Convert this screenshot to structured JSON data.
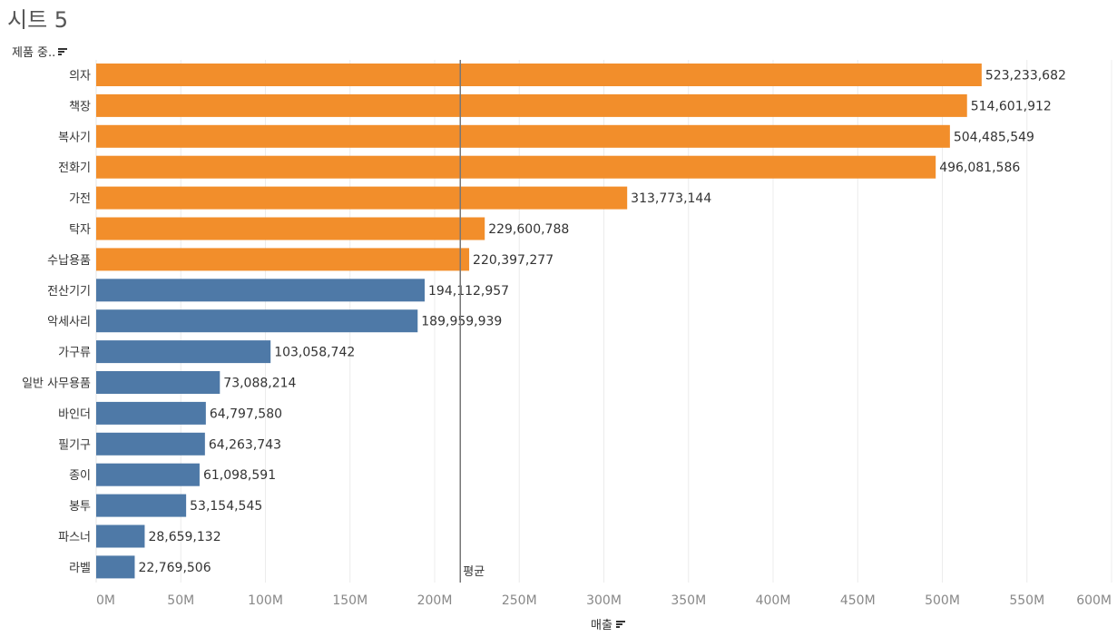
{
  "sheet_title": "시트 5",
  "row_header_label": "제품 중..",
  "x_axis_title": "매출",
  "avg_label": "평균",
  "colors": {
    "highlight": "#F28E2B",
    "base": "#4E79A7",
    "avg_line": "#777777",
    "grid": "#ececec"
  },
  "chart_data": {
    "type": "bar",
    "orientation": "horizontal",
    "categories": [
      "의자",
      "책장",
      "복사기",
      "전화기",
      "가전",
      "탁자",
      "수납용품",
      "전산기기",
      "악세사리",
      "가구류",
      "일반 사무용품",
      "바인더",
      "필기구",
      "종이",
      "봉투",
      "파스너",
      "라벨"
    ],
    "values": [
      523233682,
      514601912,
      504485549,
      496081586,
      313773144,
      229600788,
      220397277,
      194112957,
      189959939,
      103058742,
      73088214,
      64797580,
      64263743,
      61098591,
      53154545,
      28659132,
      22769506
    ],
    "value_labels": [
      "523,233,682",
      "514,601,912",
      "504,485,549",
      "496,081,586",
      "313,773,144",
      "229,600,788",
      "220,397,277",
      "194,112,957",
      "189,959,939",
      "103,058,742",
      "73,088,214",
      "64,797,580",
      "64,263,743",
      "61,098,591",
      "53,154,545",
      "28,659,132",
      "22,769,506"
    ],
    "highlighted": [
      true,
      true,
      true,
      true,
      true,
      true,
      true,
      false,
      false,
      false,
      false,
      false,
      false,
      false,
      false,
      false,
      false
    ],
    "xlim": [
      0,
      600000000
    ],
    "xticks": [
      0,
      50000000,
      100000000,
      150000000,
      200000000,
      250000000,
      300000000,
      350000000,
      400000000,
      450000000,
      500000000,
      550000000,
      600000000
    ],
    "xtick_labels": [
      "0M",
      "50M",
      "100M",
      "150M",
      "200M",
      "250M",
      "300M",
      "350M",
      "400M",
      "450M",
      "500M",
      "550M",
      "600M"
    ],
    "average": 215155716,
    "grid_vertical": true
  }
}
